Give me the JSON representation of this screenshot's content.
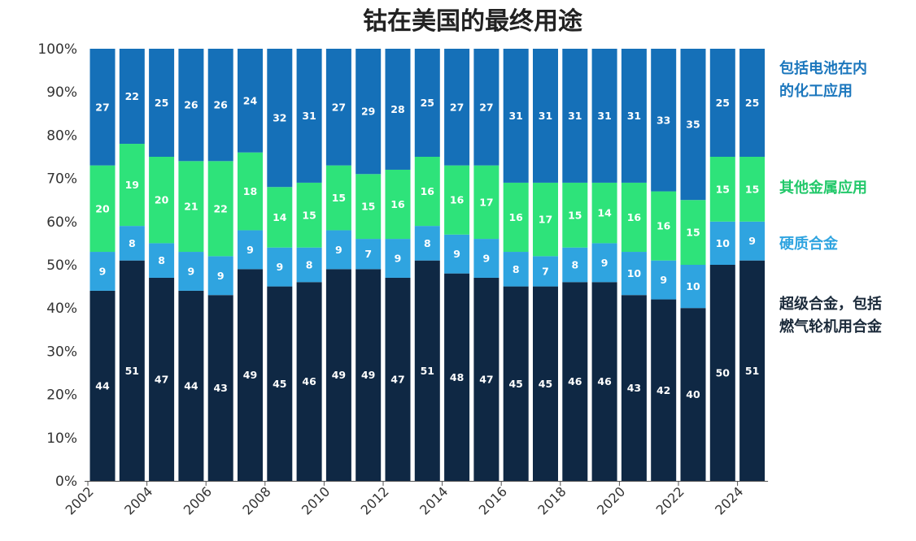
{
  "chart_data": {
    "type": "bar",
    "stacked": true,
    "title": "钴在美国的最终用途",
    "categories": [
      "2002",
      "2003",
      "2004",
      "2005",
      "2006",
      "2007",
      "2008",
      "2009",
      "2010",
      "2011",
      "2012",
      "2013",
      "2014",
      "2015",
      "2016",
      "2017",
      "2018",
      "2019",
      "2020",
      "2021",
      "2022",
      "2023",
      "2024"
    ],
    "x_tick_labels": [
      "2002",
      "2004",
      "2006",
      "2008",
      "2010",
      "2012",
      "2014",
      "2016",
      "2018",
      "2020",
      "2022",
      "2024"
    ],
    "y_ticks": [
      "0%",
      "10%",
      "20%",
      "30%",
      "40%",
      "50%",
      "60%",
      "70%",
      "80%",
      "90%",
      "100%"
    ],
    "ylim": [
      0,
      100
    ],
    "xlabel": "",
    "ylabel": "",
    "grid": false,
    "legend_position": "right",
    "series": [
      {
        "name": "超级合金，包括燃气轮机用合金",
        "legend_lines": [
          "超级合金，包括",
          "燃气轮机用合金"
        ],
        "color": "#0f2844",
        "legend_color": "#1b2a3a",
        "values": [
          44,
          51,
          47,
          44,
          43,
          49,
          45,
          46,
          49,
          49,
          47,
          51,
          48,
          47,
          45,
          45,
          46,
          46,
          43,
          42,
          40,
          50,
          51
        ]
      },
      {
        "name": "硬质合金",
        "legend_lines": [
          "硬质合金"
        ],
        "color": "#2fa4e0",
        "legend_color": "#2fa4e0",
        "values": [
          9,
          8,
          8,
          9,
          9,
          9,
          9,
          8,
          9,
          7,
          9,
          8,
          9,
          9,
          8,
          7,
          8,
          9,
          10,
          9,
          10,
          10,
          9
        ]
      },
      {
        "name": "其他金属应用",
        "legend_lines": [
          "其他金属应用"
        ],
        "color": "#2ee37a",
        "legend_color": "#22c86a",
        "values": [
          20,
          19,
          20,
          21,
          22,
          18,
          14,
          15,
          15,
          15,
          16,
          16,
          16,
          17,
          16,
          17,
          15,
          14,
          16,
          16,
          15,
          15,
          15
        ]
      },
      {
        "name": "包括电池在内的化工应用",
        "legend_lines": [
          "包括电池在内",
          "的化工应用"
        ],
        "color": "#1570b8",
        "legend_color": "#1c77bd",
        "values": [
          27,
          22,
          25,
          26,
          26,
          24,
          32,
          31,
          27,
          29,
          28,
          25,
          27,
          27,
          31,
          31,
          31,
          31,
          31,
          33,
          35,
          25,
          25
        ]
      }
    ]
  }
}
